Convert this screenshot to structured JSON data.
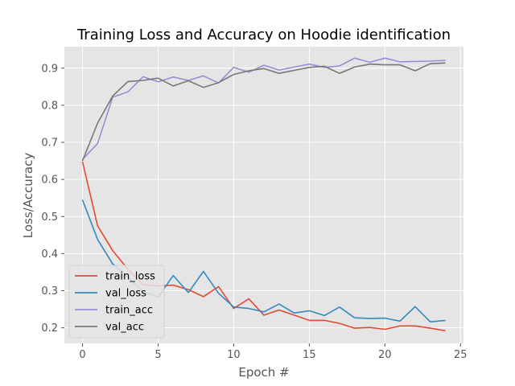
{
  "chart_data": {
    "type": "line",
    "title": "Training Loss and Accuracy on Hoodie identification",
    "xlabel": "Epoch #",
    "ylabel": "Loss/Accuracy",
    "xlim": [
      -1.2,
      25.2
    ],
    "ylim": [
      0.158,
      0.958
    ],
    "xticks": [
      0,
      5,
      10,
      15,
      20,
      25
    ],
    "yticks": [
      0.2,
      0.3,
      0.4,
      0.5,
      0.6,
      0.7,
      0.8,
      0.9
    ],
    "xtick_labels": [
      "0",
      "5",
      "10",
      "15",
      "20",
      "25"
    ],
    "ytick_labels": [
      "0.2",
      "0.3",
      "0.4",
      "0.5",
      "0.6",
      "0.7",
      "0.8",
      "0.9"
    ],
    "grid": true,
    "legend_position": "lower-left",
    "x": [
      0,
      1,
      2,
      3,
      4,
      5,
      6,
      7,
      8,
      9,
      10,
      11,
      12,
      13,
      14,
      15,
      16,
      17,
      18,
      19,
      20,
      21,
      22,
      23,
      24
    ],
    "series": [
      {
        "name": "train_loss",
        "color": "#e24a33",
        "values": [
          0.648,
          0.475,
          0.408,
          0.358,
          0.316,
          0.313,
          0.315,
          0.303,
          0.284,
          0.311,
          0.252,
          0.278,
          0.234,
          0.248,
          0.234,
          0.22,
          0.22,
          0.212,
          0.199,
          0.201,
          0.196,
          0.205,
          0.205,
          0.199,
          0.192
        ]
      },
      {
        "name": "val_loss",
        "color": "#348abd",
        "values": [
          0.545,
          0.438,
          0.372,
          0.338,
          0.297,
          0.283,
          0.341,
          0.295,
          0.352,
          0.293,
          0.256,
          0.252,
          0.243,
          0.264,
          0.24,
          0.246,
          0.233,
          0.256,
          0.227,
          0.225,
          0.226,
          0.218,
          0.257,
          0.216,
          0.22
        ]
      },
      {
        "name": "train_acc",
        "color": "#988ed5",
        "values": [
          0.654,
          0.697,
          0.822,
          0.836,
          0.877,
          0.863,
          0.876,
          0.867,
          0.879,
          0.86,
          0.902,
          0.889,
          0.908,
          0.895,
          0.903,
          0.911,
          0.902,
          0.906,
          0.927,
          0.916,
          0.927,
          0.917,
          0.918,
          0.919,
          0.921
        ]
      },
      {
        "name": "val_acc",
        "color": "#777777",
        "values": [
          0.65,
          0.752,
          0.825,
          0.864,
          0.867,
          0.873,
          0.852,
          0.866,
          0.848,
          0.861,
          0.883,
          0.893,
          0.899,
          0.886,
          0.894,
          0.902,
          0.905,
          0.886,
          0.903,
          0.911,
          0.909,
          0.909,
          0.893,
          0.912,
          0.914
        ]
      }
    ]
  }
}
